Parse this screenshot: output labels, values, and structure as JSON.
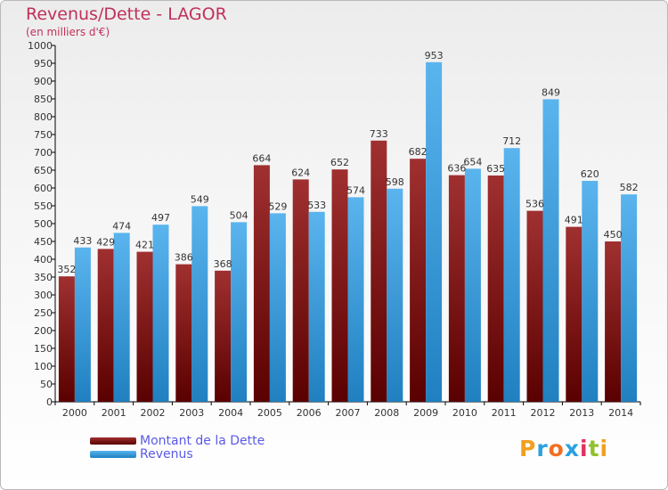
{
  "title": "Revenus/Dette - LAGOR",
  "subtitle": "(en milliers d'€)",
  "logo": {
    "letters": [
      "P",
      "r",
      "o",
      "x",
      "i",
      "t",
      "i"
    ],
    "colors": [
      "#f0a020",
      "#2aa0e0",
      "#f07020",
      "#2aa0e0",
      "#e03060",
      "#90c030",
      "#f0a020"
    ]
  },
  "colors": {
    "dette_dark": "#5a0000",
    "dette_light": "#a03030",
    "revenus_dark": "#2080c0",
    "revenus_light": "#5ab4ee",
    "title": "#c0305a",
    "legend_text": "#5a5ae6"
  },
  "chart_data": {
    "type": "bar",
    "title": "Revenus/Dette - LAGOR",
    "subtitle": "(en milliers d'€)",
    "categories": [
      "2000",
      "2001",
      "2002",
      "2003",
      "2004",
      "2005",
      "2006",
      "2007",
      "2008",
      "2009",
      "2010",
      "2011",
      "2012",
      "2013",
      "2014"
    ],
    "series": [
      {
        "name": "Montant de la Dette",
        "values": [
          352,
          429,
          421,
          386,
          368,
          664,
          624,
          652,
          733,
          682,
          636,
          635,
          536,
          491,
          450
        ]
      },
      {
        "name": "Revenus",
        "values": [
          433,
          474,
          497,
          549,
          504,
          529,
          533,
          574,
          598,
          953,
          654,
          712,
          849,
          620,
          582
        ]
      }
    ],
    "ylim": [
      0,
      1000
    ],
    "ytick_step": 50,
    "grid": false,
    "legend_placement": "bottom-left",
    "show_value_labels": true
  }
}
